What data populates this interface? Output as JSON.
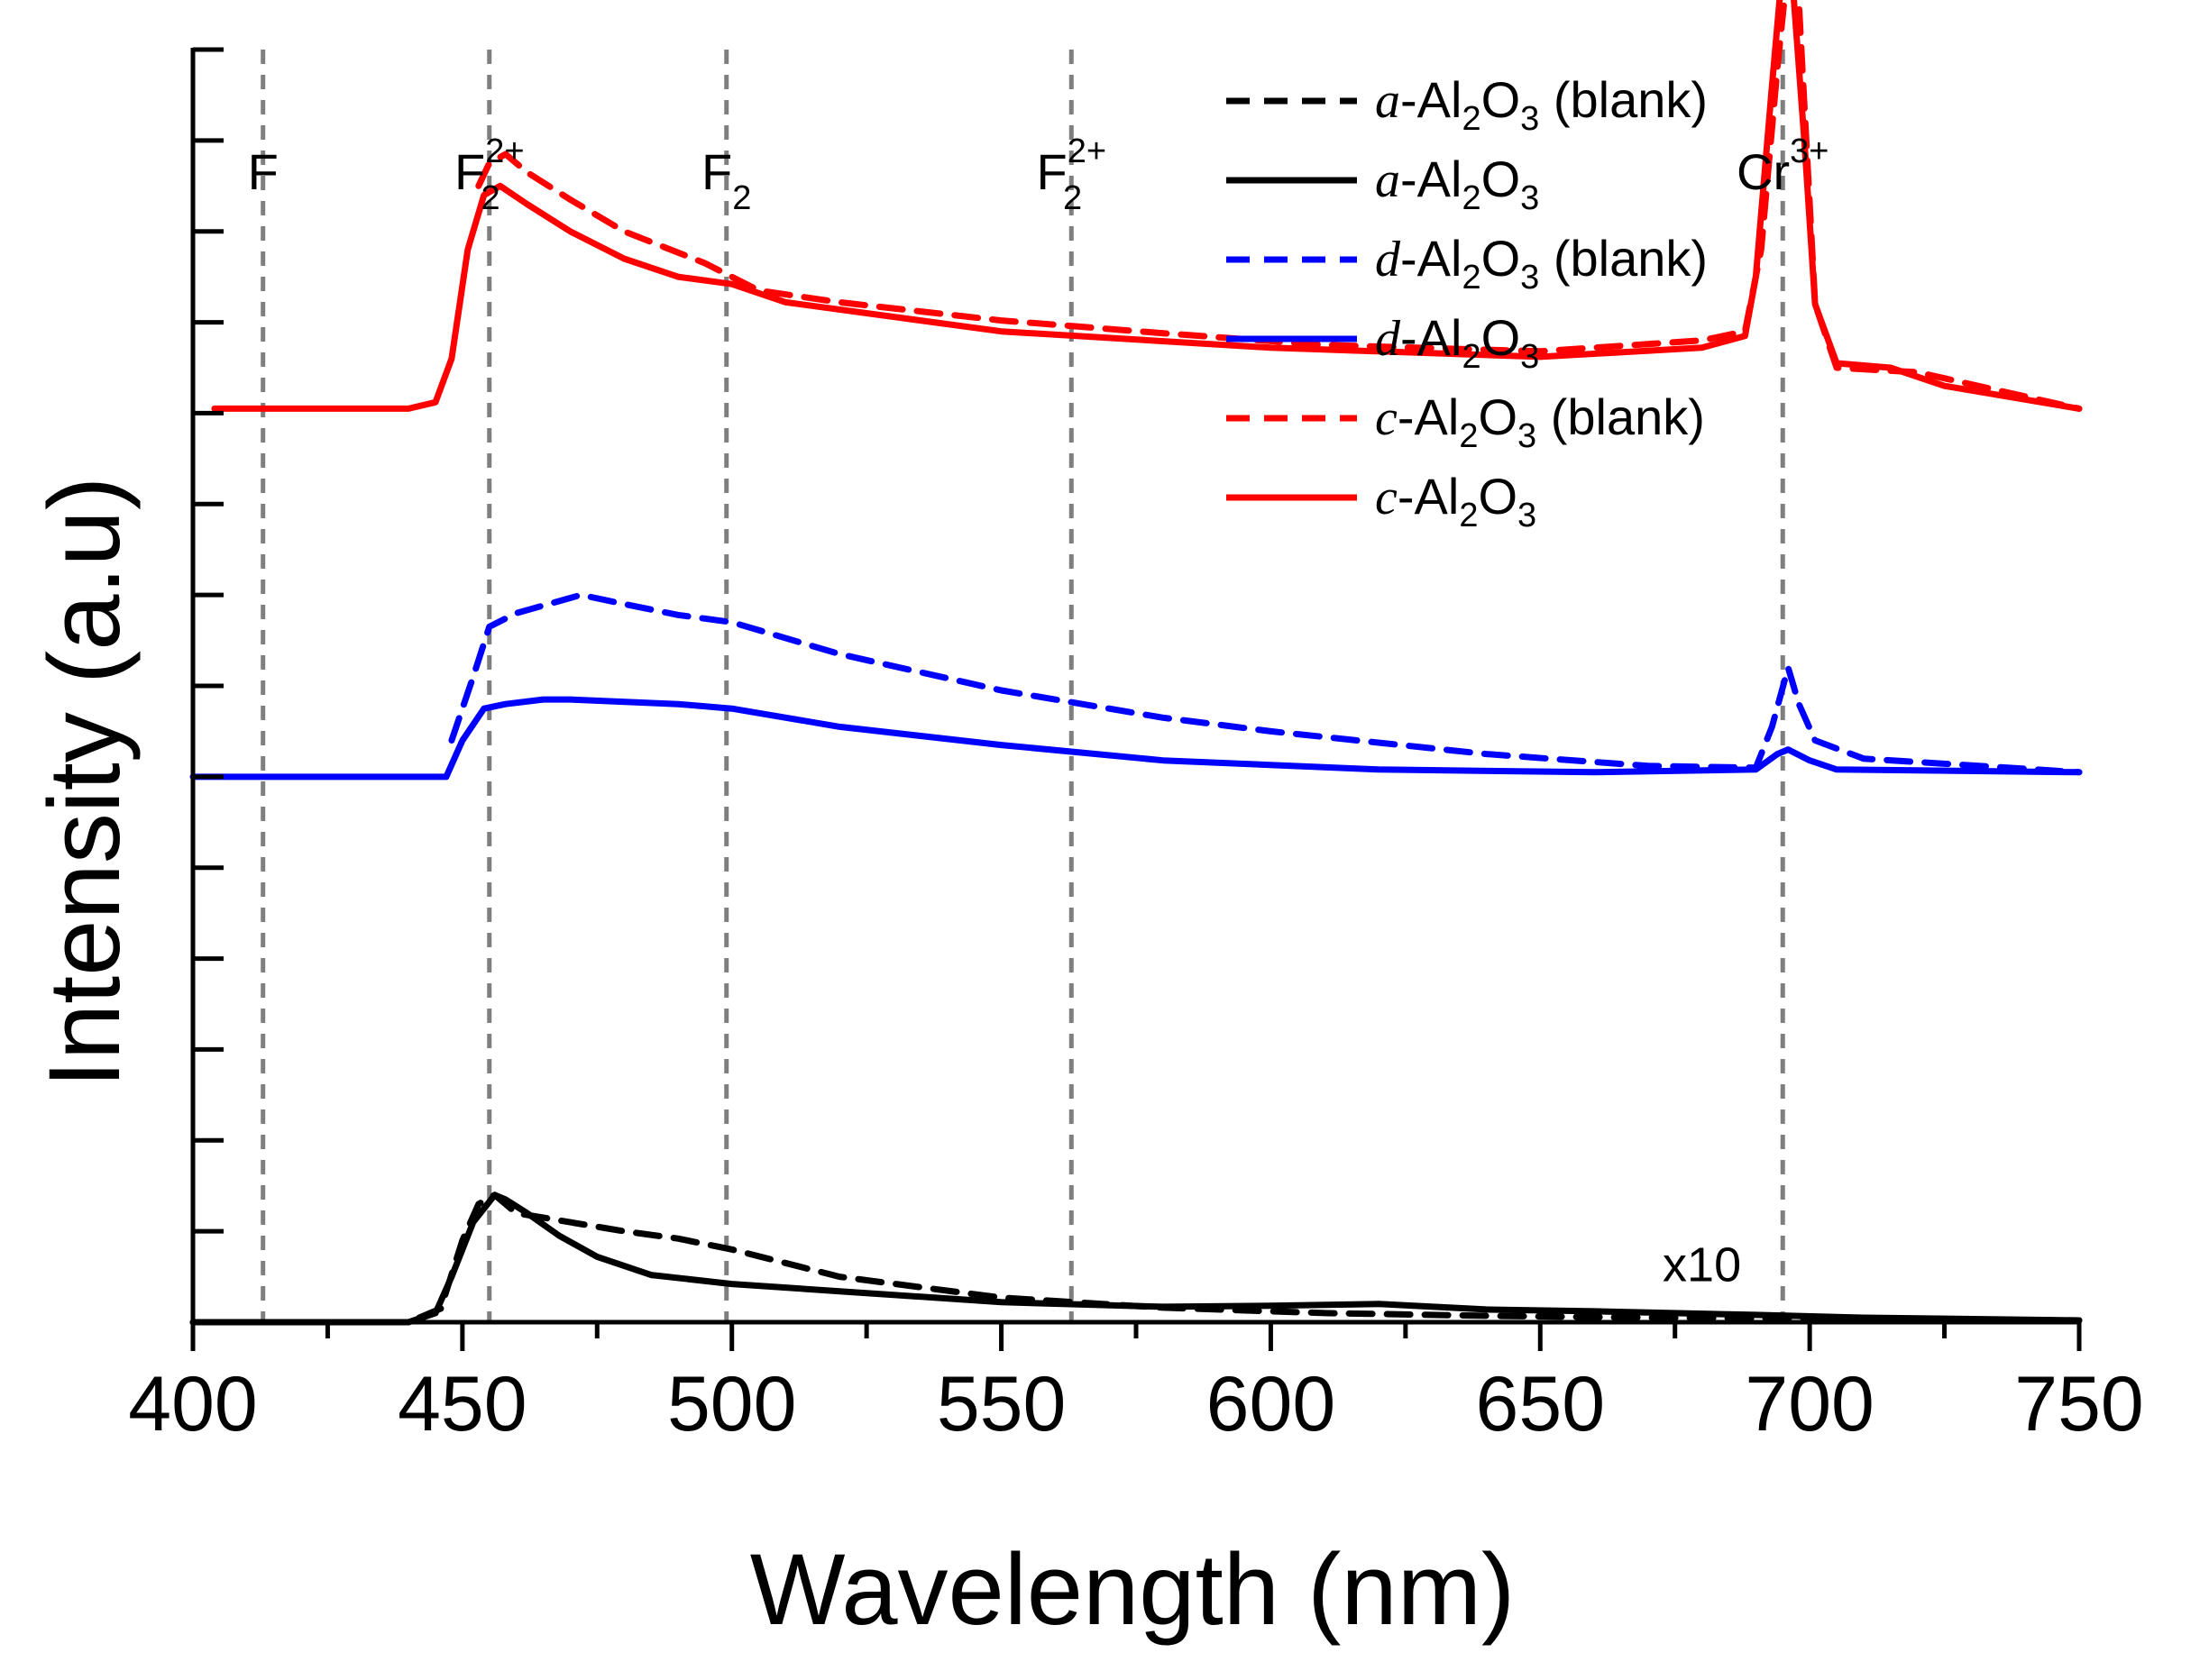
{
  "chart_data": {
    "type": "line",
    "title": "",
    "xlabel": "Wavelength (nm)",
    "ylabel": "Intensity (a.u)",
    "xlim": [
      400,
      750
    ],
    "ylim": [
      0,
      14
    ],
    "y_tick_labels_shown": false,
    "x_ticks": [
      "400",
      "450",
      "500",
      "550",
      "600",
      "650",
      "700",
      "750"
    ],
    "x_tick_values": [
      400,
      450,
      500,
      550,
      600,
      650,
      700,
      750
    ],
    "y_ticks": [
      0,
      1,
      2,
      3,
      4,
      5,
      6,
      7,
      8,
      9,
      10,
      11,
      12,
      13,
      14
    ],
    "reference_lines": [
      {
        "x": 413,
        "label": "F",
        "sub": "",
        "sup": ""
      },
      {
        "x": 455,
        "label": "F",
        "sub": "2",
        "sup": "2+"
      },
      {
        "x": 499,
        "label": "F",
        "sub": "2",
        "sup": ""
      },
      {
        "x": 563,
        "label": "F",
        "sub": "2",
        "sup": "2+"
      },
      {
        "x": 695,
        "label": "Cr",
        "sub": "",
        "sup": "3+"
      }
    ],
    "annotations": [
      {
        "text": "x10",
        "x": 680,
        "y": 0.45
      }
    ],
    "legend_location": "top-right",
    "series": [
      {
        "name": "a-Al2O3 (blank)",
        "style": "dashed",
        "color": "#000000",
        "label": {
          "italic": "a",
          "text": "-Al",
          "sub1": "2",
          "mid": "O",
          "sub2": "3",
          "suffix": " (blank)"
        },
        "x": [
          400,
          440,
          446,
          450,
          453,
          456,
          460,
          465,
          470,
          480,
          490,
          500,
          520,
          550,
          580,
          610,
          640,
          670,
          700,
          750
        ],
        "y": [
          0,
          0,
          0.15,
          0.9,
          1.3,
          1.4,
          1.2,
          1.15,
          1.1,
          1.0,
          0.92,
          0.8,
          0.5,
          0.27,
          0.16,
          0.1,
          0.07,
          0.05,
          0.04,
          0.02
        ]
      },
      {
        "name": "a-Al2O3",
        "style": "solid",
        "color": "#000000",
        "label": {
          "italic": "a",
          "text": "-Al",
          "sub1": "2",
          "mid": "O",
          "sub2": "3",
          "suffix": ""
        },
        "x": [
          400,
          440,
          445,
          448,
          452,
          456,
          458,
          462,
          468,
          475,
          485,
          500,
          520,
          550,
          580,
          600,
          620,
          640,
          660,
          690,
          710,
          750
        ],
        "y": [
          0,
          0,
          0.1,
          0.5,
          1.1,
          1.4,
          1.35,
          1.2,
          0.95,
          0.72,
          0.52,
          0.42,
          0.34,
          0.22,
          0.17,
          0.18,
          0.2,
          0.14,
          0.12,
          0.08,
          0.05,
          0.02
        ]
      },
      {
        "name": "d-Al2O3 (blank)",
        "style": "dashed",
        "color": "#0000ff",
        "label": {
          "italic": "d",
          "text": "-Al",
          "sub1": "2",
          "mid": "O",
          "sub2": "3",
          "suffix": " (blank)"
        },
        "x": [
          448,
          452,
          455,
          460,
          466,
          472,
          480,
          490,
          500,
          520,
          550,
          580,
          600,
          640,
          670,
          690,
          693,
          696,
          698,
          701,
          710,
          750
        ],
        "y": [
          6.4,
          7.1,
          7.65,
          7.8,
          7.9,
          8.0,
          7.9,
          7.78,
          7.7,
          7.35,
          6.95,
          6.65,
          6.5,
          6.25,
          6.12,
          6.1,
          6.55,
          7.2,
          6.8,
          6.4,
          6.2,
          6.05
        ]
      },
      {
        "name": "d-Al2O3",
        "style": "solid",
        "color": "#0000ff",
        "label": {
          "italic": "d",
          "text": "-Al",
          "sub1": "2",
          "mid": "O",
          "sub2": "3",
          "suffix": ""
        },
        "x": [
          400,
          447,
          450,
          454,
          458,
          465,
          470,
          490,
          500,
          520,
          550,
          580,
          620,
          660,
          690,
          694,
          696,
          700,
          705,
          750
        ],
        "y": [
          6.0,
          6.0,
          6.4,
          6.75,
          6.8,
          6.85,
          6.85,
          6.8,
          6.75,
          6.55,
          6.35,
          6.18,
          6.08,
          6.05,
          6.08,
          6.25,
          6.3,
          6.18,
          6.08,
          6.05
        ]
      },
      {
        "name": "c-Al2O3 (blank)",
        "style": "dashed",
        "color": "#ff0000",
        "label": {
          "italic": "c",
          "text": "-Al",
          "sub1": "2",
          "mid": "O",
          "sub2": "3",
          "suffix": " (blank)"
        },
        "x": [
          453,
          455,
          458,
          462,
          470,
          480,
          495,
          505,
          520,
          550,
          580,
          610,
          650,
          680,
          688,
          691,
          694,
          696,
          698,
          701,
          705,
          720,
          750
        ],
        "y": [
          12.5,
          12.75,
          12.85,
          12.65,
          12.35,
          12.0,
          11.65,
          11.35,
          11.22,
          11.02,
          10.88,
          10.75,
          10.68,
          10.8,
          10.9,
          11.8,
          13.8,
          14.95,
          14.5,
          11.2,
          10.5,
          10.45,
          10.05
        ]
      },
      {
        "name": "c-Al2O3",
        "style": "solid",
        "color": "#ff0000",
        "label": {
          "italic": "c",
          "text": "-Al",
          "sub1": "2",
          "mid": "O",
          "sub2": "3",
          "suffix": ""
        },
        "x": [
          404,
          440,
          445,
          448,
          451,
          454,
          457,
          462,
          470,
          480,
          490,
          500,
          510,
          550,
          600,
          650,
          680,
          688,
          690,
          693,
          695,
          697,
          699,
          701,
          705,
          715,
          725,
          750
        ],
        "y": [
          10.05,
          10.05,
          10.12,
          10.6,
          11.8,
          12.4,
          12.5,
          12.3,
          12.0,
          11.7,
          11.5,
          11.42,
          11.22,
          10.9,
          10.72,
          10.62,
          10.72,
          10.85,
          11.5,
          13.6,
          14.95,
          14.6,
          13.0,
          11.2,
          10.55,
          10.5,
          10.3,
          10.05
        ]
      }
    ]
  }
}
